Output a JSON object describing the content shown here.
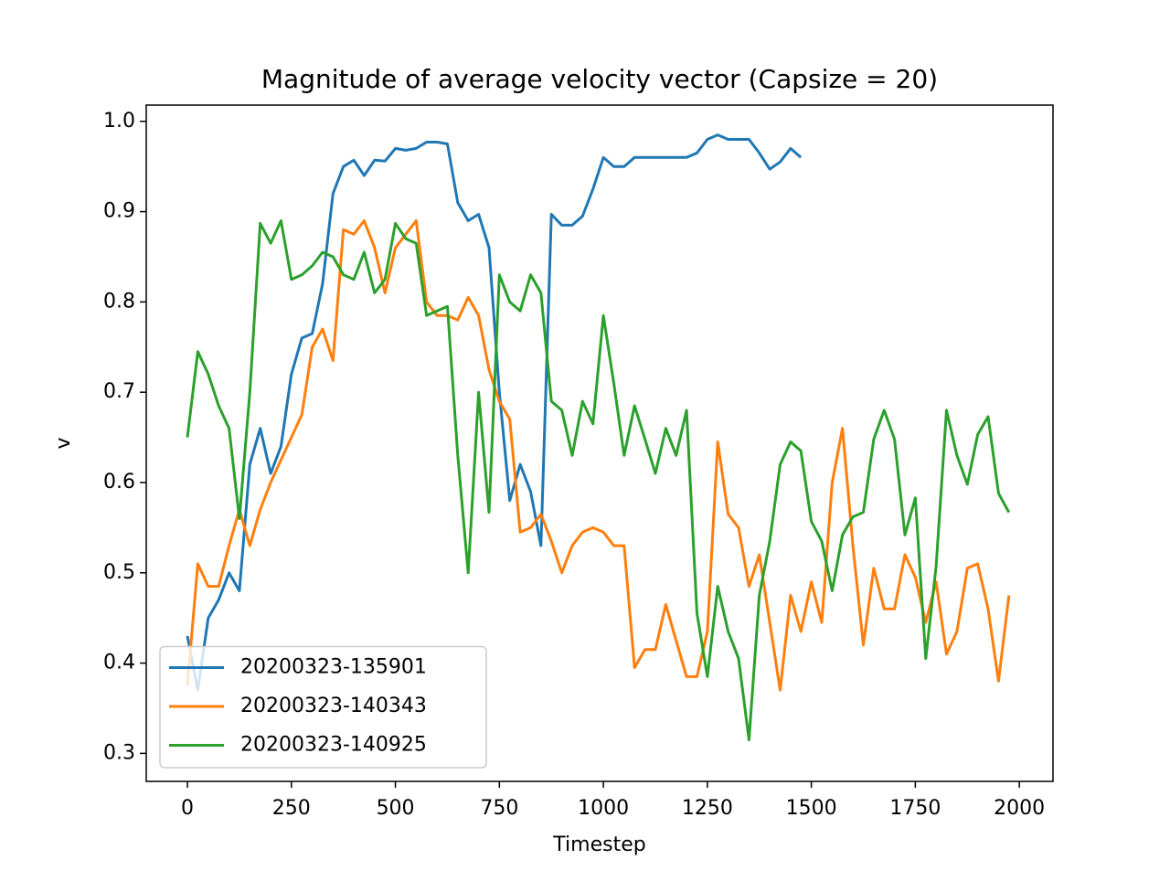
{
  "chart_data": {
    "type": "line",
    "title": "Magnitude of average velocity vector (Capsize = 20)",
    "xlabel": "Timestep",
    "ylabel": "v",
    "x": [
      0,
      25,
      50,
      75,
      100,
      125,
      150,
      175,
      200,
      225,
      250,
      275,
      300,
      325,
      350,
      375,
      400,
      425,
      450,
      475,
      500,
      525,
      550,
      575,
      600,
      625,
      650,
      675,
      700,
      725,
      750,
      775,
      800,
      825,
      850,
      875,
      900,
      925,
      950,
      975,
      1000,
      1025,
      1050,
      1075,
      1100,
      1125,
      1150,
      1175,
      1200,
      1225,
      1250,
      1275,
      1300,
      1325,
      1350,
      1375,
      1400,
      1425,
      1450,
      1475,
      1500,
      1525,
      1550,
      1575,
      1600,
      1625,
      1650,
      1675,
      1700,
      1725,
      1750,
      1775,
      1800,
      1825,
      1850,
      1875,
      1900,
      1925,
      1950,
      1975
    ],
    "series": [
      {
        "name": "20200323-135901",
        "color": "#1f77b4",
        "values": [
          0.43,
          0.37,
          0.45,
          0.47,
          0.5,
          0.48,
          0.62,
          0.66,
          0.61,
          0.64,
          0.72,
          0.76,
          0.765,
          0.82,
          0.92,
          0.95,
          0.957,
          0.94,
          0.957,
          0.956,
          0.97,
          0.968,
          0.97,
          0.977,
          0.977,
          0.975,
          0.91,
          0.89,
          0.897,
          0.86,
          0.7,
          0.58,
          0.62,
          0.59,
          0.53,
          0.897,
          0.885,
          0.885,
          0.895,
          0.925,
          0.96,
          0.95,
          0.95,
          0.96,
          0.96,
          0.96,
          0.96,
          0.96,
          0.96,
          0.965,
          0.98,
          0.985,
          0.98,
          0.98,
          0.98,
          0.965,
          0.947,
          0.955,
          0.97,
          0.96,
          null,
          null,
          null,
          null,
          null,
          null,
          null,
          null,
          null,
          null,
          null,
          null,
          null,
          null,
          null,
          null,
          null,
          null,
          null,
          null
        ]
      },
      {
        "name": "20200323-140343",
        "color": "#ff7f0e",
        "values": [
          0.375,
          0.51,
          0.485,
          0.485,
          0.53,
          0.57,
          0.53,
          0.57,
          0.6,
          0.625,
          0.65,
          0.675,
          0.75,
          0.77,
          0.735,
          0.88,
          0.875,
          0.89,
          0.86,
          0.81,
          0.86,
          0.875,
          0.89,
          0.8,
          0.785,
          0.785,
          0.78,
          0.805,
          0.785,
          0.725,
          0.69,
          0.67,
          0.545,
          0.55,
          0.565,
          0.535,
          0.5,
          0.53,
          0.545,
          0.55,
          0.545,
          0.53,
          0.53,
          0.395,
          0.415,
          0.415,
          0.465,
          0.425,
          0.385,
          0.385,
          0.435,
          0.645,
          0.565,
          0.55,
          0.485,
          0.52,
          0.445,
          0.37,
          0.475,
          0.435,
          0.49,
          0.445,
          0.6,
          0.66,
          0.53,
          0.42,
          0.505,
          0.46,
          0.46,
          0.52,
          0.495,
          0.445,
          0.49,
          0.41,
          0.435,
          0.505,
          0.51,
          0.46,
          0.38,
          0.475
        ]
      },
      {
        "name": "20200323-140925",
        "color": "#2ca02c",
        "values": [
          0.65,
          0.745,
          0.72,
          0.685,
          0.66,
          0.56,
          0.7,
          0.887,
          0.865,
          0.89,
          0.825,
          0.83,
          0.84,
          0.855,
          0.85,
          0.83,
          0.825,
          0.855,
          0.81,
          0.825,
          0.887,
          0.87,
          0.865,
          0.785,
          0.79,
          0.795,
          0.63,
          0.5,
          0.7,
          0.567,
          0.83,
          0.8,
          0.79,
          0.83,
          0.81,
          0.69,
          0.68,
          0.63,
          0.69,
          0.665,
          0.785,
          0.71,
          0.63,
          0.685,
          0.648,
          0.61,
          0.66,
          0.63,
          0.68,
          0.455,
          0.385,
          0.485,
          0.435,
          0.405,
          0.315,
          0.475,
          0.535,
          0.62,
          0.645,
          0.635,
          0.557,
          0.535,
          0.48,
          0.542,
          0.562,
          0.567,
          0.648,
          0.68,
          0.648,
          0.542,
          0.583,
          0.405,
          0.507,
          0.68,
          0.63,
          0.598,
          0.653,
          0.673,
          0.588,
          0.567
        ]
      }
    ],
    "xlim": [
      -99,
      2081
    ],
    "xticks": [
      0,
      250,
      500,
      750,
      1000,
      1250,
      1500,
      1750,
      2000
    ],
    "ylim": [
      0.269,
      1.018
    ],
    "yticks": [
      0.3,
      0.4,
      0.5,
      0.6,
      0.7,
      0.8,
      0.9,
      {
        "value": 1,
        "label": "1.0"
      }
    ],
    "legend": "lower left"
  }
}
